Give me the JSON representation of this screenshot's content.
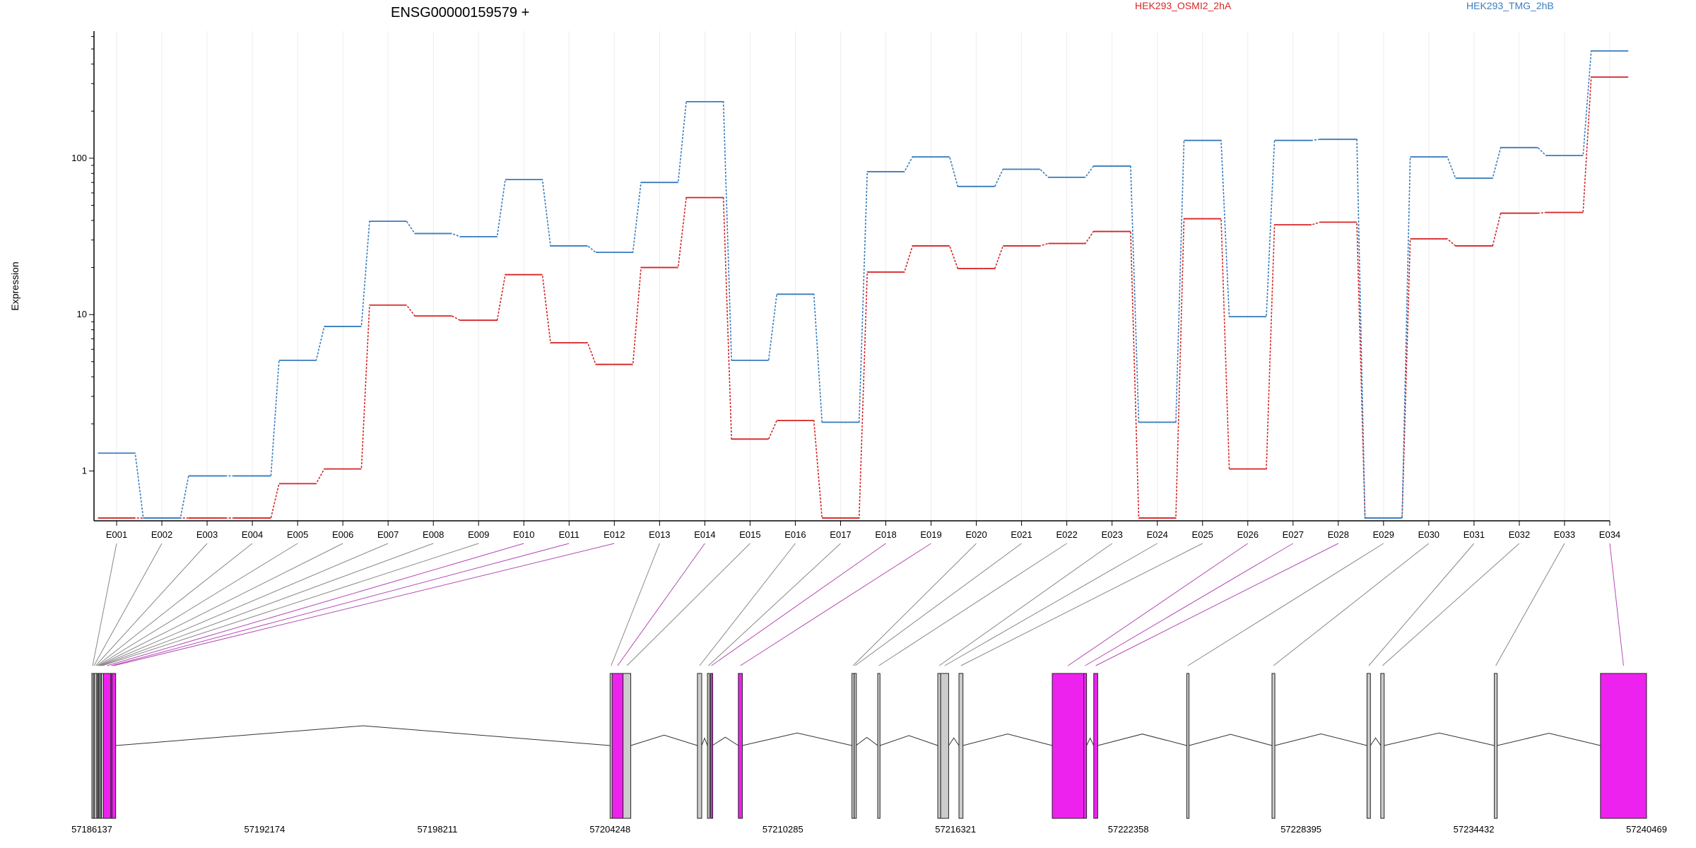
{
  "chart_data": {
    "type": "line",
    "title": "ENSG00000159579 +",
    "ylabel": "Expression",
    "yscale": "log",
    "ylim": [
      0.48,
      650
    ],
    "yticks": [
      "1",
      "10",
      "100"
    ],
    "categories": [
      "E001",
      "E002",
      "E003",
      "E004",
      "E005",
      "E006",
      "E007",
      "E008",
      "E009",
      "E010",
      "E011",
      "E012",
      "E013",
      "E014",
      "E015",
      "E016",
      "E017",
      "E018",
      "E019",
      "E020",
      "E021",
      "E022",
      "E023",
      "E024",
      "E025",
      "E026",
      "E027",
      "E028",
      "E029",
      "E030",
      "E031",
      "E032",
      "E033",
      "E034"
    ],
    "series": [
      {
        "name": "HEK293_OSMI2_2hA",
        "color": "#d62728",
        "values": [
          0.5,
          0.5,
          0.5,
          0.5,
          0.83,
          1.03,
          11.5,
          9.8,
          9.2,
          18,
          6.6,
          4.8,
          20,
          56,
          1.6,
          2.1,
          0.5,
          18.7,
          27.5,
          19.7,
          27.5,
          28.5,
          34,
          0.5,
          41,
          1.03,
          37.5,
          39,
          0.5,
          30.5,
          27.5,
          44.5,
          45,
          330
        ]
      },
      {
        "name": "HEK293_TMG_2hB",
        "color": "#3a7ebf",
        "values": [
          1.3,
          0.5,
          0.93,
          0.93,
          5.1,
          8.4,
          39.5,
          33,
          31.5,
          73,
          27.5,
          25,
          70,
          230,
          5.1,
          13.5,
          2.05,
          82,
          102,
          66,
          85,
          75.5,
          89,
          2.05,
          130,
          9.7,
          130,
          132,
          0.5,
          102,
          74.5,
          117,
          104,
          485
        ]
      }
    ],
    "exon_colors": {
      "differential": "#ee22ee",
      "other": "#cccccc"
    },
    "genomic_ticks": [
      "57186137",
      "57192174",
      "57198211",
      "57204248",
      "57210285",
      "57216321",
      "57222358",
      "57228395",
      "57234432",
      "57240469"
    ],
    "exons": [
      {
        "id": "E001",
        "start": 57186137,
        "end": 57186190,
        "diff": false
      },
      {
        "id": "E002",
        "start": 57186190,
        "end": 57186230,
        "diff": false
      },
      {
        "id": "E003",
        "start": 57186230,
        "end": 57186310,
        "diff": false
      },
      {
        "id": "E004",
        "start": 57186310,
        "end": 57186330,
        "diff": false
      },
      {
        "id": "E005",
        "start": 57186330,
        "end": 57186370,
        "diff": false
      },
      {
        "id": "E006",
        "start": 57186370,
        "end": 57186390,
        "diff": false
      },
      {
        "id": "E007",
        "start": 57186390,
        "end": 57186440,
        "diff": false
      },
      {
        "id": "E008",
        "start": 57186440,
        "end": 57186470,
        "diff": false
      },
      {
        "id": "E009",
        "start": 57186470,
        "end": 57186540,
        "diff": false
      },
      {
        "id": "E010",
        "start": 57186540,
        "end": 57186800,
        "diff": true
      },
      {
        "id": "E011",
        "start": 57186800,
        "end": 57186840,
        "diff": true
      },
      {
        "id": "E012",
        "start": 57186840,
        "end": 57186970,
        "diff": true
      },
      {
        "id": "E013",
        "start": 57204248,
        "end": 57204320,
        "diff": false
      },
      {
        "id": "E014",
        "start": 57204320,
        "end": 57204700,
        "diff": true
      },
      {
        "id": "E015",
        "start": 57204700,
        "end": 57204970,
        "diff": false
      },
      {
        "id": "E016",
        "start": 57207300,
        "end": 57207450,
        "diff": false
      },
      {
        "id": "E017",
        "start": 57207650,
        "end": 57207720,
        "diff": false
      },
      {
        "id": "E018",
        "start": 57207760,
        "end": 57207820,
        "diff": true
      },
      {
        "id": "E019",
        "start": 57208730,
        "end": 57208870,
        "diff": true
      },
      {
        "id": "E020",
        "start": 57212700,
        "end": 57212780,
        "diff": false
      },
      {
        "id": "E021",
        "start": 57212780,
        "end": 57212840,
        "diff": false
      },
      {
        "id": "E022",
        "start": 57213600,
        "end": 57213680,
        "diff": false
      },
      {
        "id": "E023",
        "start": 57215700,
        "end": 57215800,
        "diff": false
      },
      {
        "id": "E024",
        "start": 57215800,
        "end": 57216080,
        "diff": false
      },
      {
        "id": "E025",
        "start": 57216440,
        "end": 57216580,
        "diff": false
      },
      {
        "id": "E026",
        "start": 57219700,
        "end": 57220800,
        "diff": true
      },
      {
        "id": "E027",
        "start": 57220800,
        "end": 57220900,
        "diff": true
      },
      {
        "id": "E028",
        "start": 57221150,
        "end": 57221290,
        "diff": true
      },
      {
        "id": "E029",
        "start": 57224400,
        "end": 57224480,
        "diff": false
      },
      {
        "id": "E030",
        "start": 57227380,
        "end": 57227480,
        "diff": false
      },
      {
        "id": "E031",
        "start": 57230700,
        "end": 57230820,
        "diff": false
      },
      {
        "id": "E032",
        "start": 57231180,
        "end": 57231300,
        "diff": false
      },
      {
        "id": "E033",
        "start": 57235150,
        "end": 57235250,
        "diff": false
      },
      {
        "id": "E034",
        "start": 57238860,
        "end": 57240469,
        "diff": true
      }
    ]
  }
}
